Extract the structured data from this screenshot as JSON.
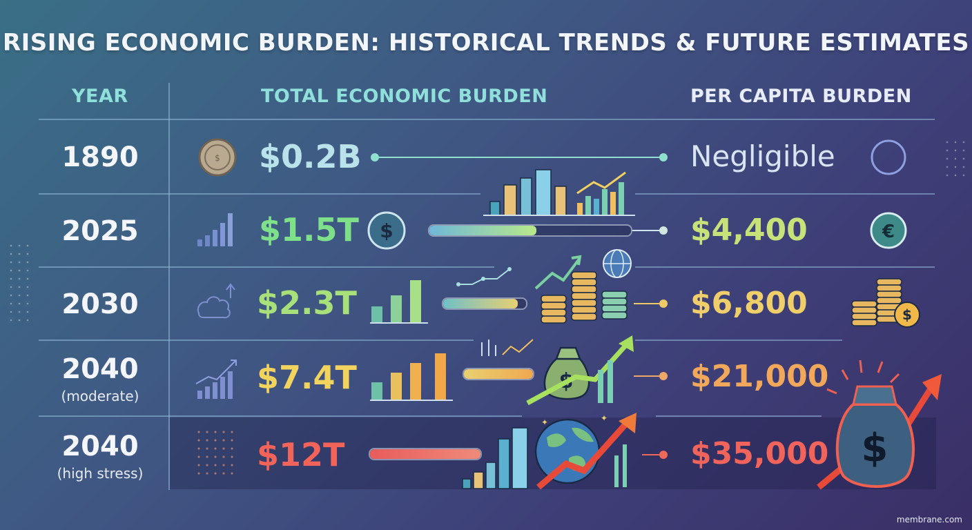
{
  "title": "RISING ECONOMIC BURDEN: HISTORICAL TRENDS & FUTURE ESTIMATES",
  "headers": {
    "year": "YEAR",
    "total": "TOTAL ECONOMIC BURDEN",
    "per_capita": "PER CAPITA BURDEN"
  },
  "rows": [
    {
      "year": "1890",
      "note": "",
      "total": "$0.2B",
      "per_capita": "Negligible",
      "total_color": "#b9e2ea",
      "percap_color": "#d9e4f2"
    },
    {
      "year": "2025",
      "note": "",
      "total": "$1.5T",
      "per_capita": "$4,400",
      "total_color": "#7fe08a",
      "percap_color": "#c8e27a"
    },
    {
      "year": "2030",
      "note": "",
      "total": "$2.3T",
      "per_capita": "$6,800",
      "total_color": "#a8e07a",
      "percap_color": "#f0cf6a"
    },
    {
      "year": "2040",
      "note": "(moderate)",
      "total": "$7.4T",
      "per_capita": "$21,000",
      "total_color": "#f2d35e",
      "percap_color": "#f2a85a"
    },
    {
      "year": "2040",
      "note": "(high stress)",
      "total": "$12T",
      "per_capita": "$35,000",
      "total_color": "#f2645a",
      "percap_color": "#f0645c"
    }
  ],
  "chart_data": {
    "type": "table",
    "title": "RISING ECONOMIC BURDEN: HISTORICAL TRENDS & FUTURE ESTIMATES",
    "columns": [
      "YEAR",
      "TOTAL ECONOMIC BURDEN",
      "PER CAPITA BURDEN"
    ],
    "rows": [
      [
        "1890",
        "$0.2B",
        "Negligible"
      ],
      [
        "2025",
        "$1.5T",
        "$4,400"
      ],
      [
        "2030",
        "$2.3T",
        "$6,800"
      ],
      [
        "2040 (moderate)",
        "$7.4T",
        "$21,000"
      ],
      [
        "2040 (high stress)",
        "$12T",
        "$35,000"
      ]
    ],
    "total_usd_trillions": [
      0.0002,
      1.5,
      2.3,
      7.4,
      12
    ],
    "per_capita_usd": [
      0,
      4400,
      6800,
      21000,
      35000
    ]
  },
  "brand": "membrane.com",
  "icons": [
    "coin-icon",
    "dollar-coin-icon",
    "euro-coin-icon",
    "coin-stack-icon",
    "money-bag-icon",
    "globe-icon",
    "city-skyline-icon",
    "growth-arrow-icon",
    "bar-chart-icon"
  ]
}
